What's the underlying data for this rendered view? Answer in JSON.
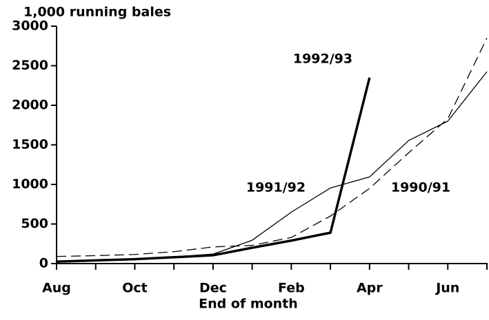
{
  "chart_data": {
    "type": "line",
    "title": "1,000 running bales",
    "x_label": "End of month",
    "categories": [
      "Aug",
      null,
      "Oct",
      null,
      "Dec",
      null,
      "Feb",
      null,
      "Apr",
      null,
      "Jun",
      null
    ],
    "ylim": [
      0,
      3000
    ],
    "yticks": [
      0,
      500,
      1000,
      1500,
      2000,
      2500,
      3000
    ],
    "grid": false,
    "series": [
      {
        "name": "1992/93",
        "color": "#000",
        "style": "solid",
        "line_width": 3.5,
        "values": [
          25,
          40,
          55,
          80,
          105,
          200,
          290,
          390,
          2350,
          null,
          null,
          null
        ]
      },
      {
        "name": "1991/92",
        "color": "#000",
        "style": "solid",
        "line_width": 1.3,
        "values": [
          30,
          45,
          60,
          85,
          120,
          295,
          650,
          955,
          1095,
          1555,
          1800,
          2425
        ]
      },
      {
        "name": "1990/91",
        "color": "#000",
        "style": "dashed",
        "line_width": 1.3,
        "values": [
          90,
          100,
          115,
          150,
          210,
          230,
          330,
          600,
          950,
          1400,
          1830,
          2850
        ]
      }
    ]
  }
}
